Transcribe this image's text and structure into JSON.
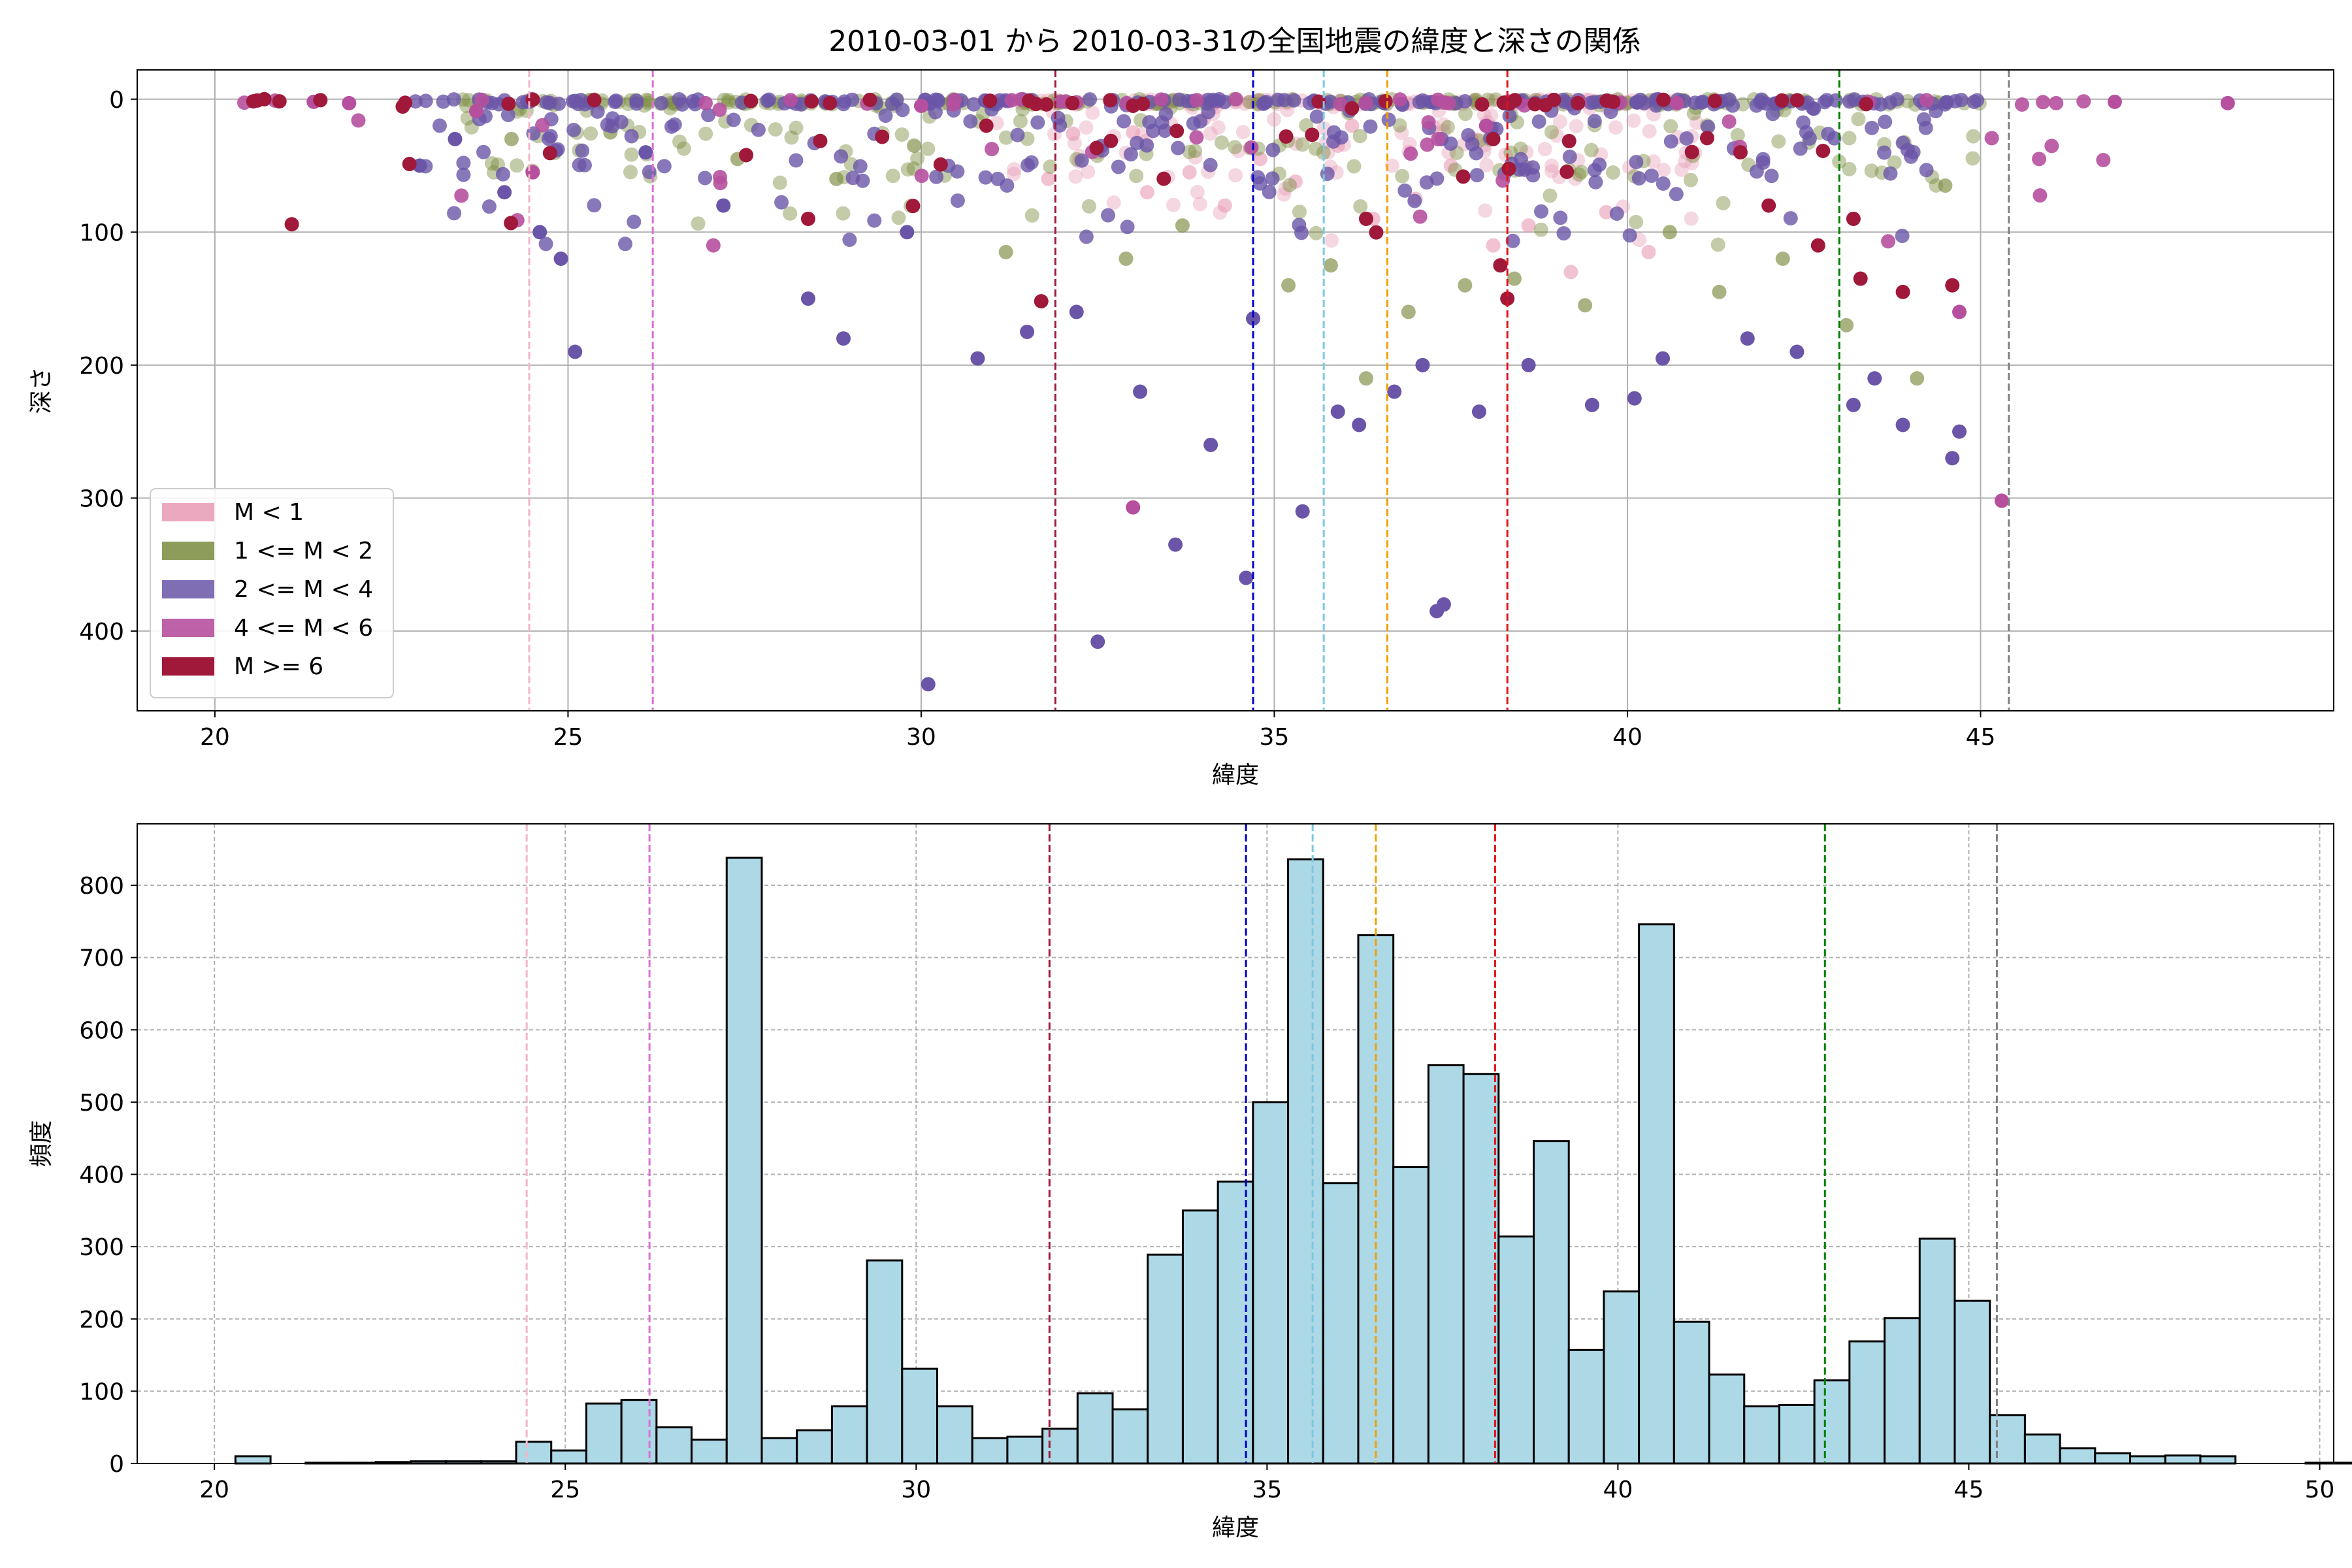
{
  "chart_data": [
    {
      "type": "scatter",
      "title": "2010-03-01 から 2010-03-31の全国地震の緯度と深さの関係",
      "xlabel": "緯度",
      "ylabel": "深さ",
      "xlim": [
        18.9,
        50.0
      ],
      "ylim": [
        460,
        -22
      ],
      "y_inverted": true,
      "xticks": [
        20,
        25,
        30,
        35,
        40,
        45
      ],
      "yticks": [
        0,
        100,
        200,
        300,
        400
      ],
      "grid": true,
      "legend_position": "lower-left",
      "series": [
        {
          "name": "M < 1",
          "color": "#e79ab4",
          "alpha": 0.4,
          "band": [
            31,
            41
          ],
          "points": [
            [
              31.8,
              60
            ],
            [
              32.5,
              40
            ],
            [
              33.2,
              70
            ],
            [
              33.8,
              55
            ],
            [
              34.3,
              80
            ],
            [
              34.8,
              45
            ],
            [
              35.3,
              62
            ],
            [
              35.9,
              35
            ],
            [
              36.4,
              90
            ],
            [
              37.0,
              75
            ],
            [
              37.5,
              50
            ],
            [
              38.1,
              110
            ],
            [
              38.6,
              95
            ],
            [
              39.2,
              130
            ],
            [
              39.7,
              85
            ],
            [
              40.3,
              115
            ],
            [
              36.1,
              20
            ],
            [
              34.0,
              15
            ],
            [
              33.0,
              25
            ],
            [
              37.8,
              30
            ]
          ]
        },
        {
          "name": "1 <= M < 2",
          "color": "#7a8b3e",
          "alpha": 0.45,
          "band": [
            23.5,
            45
          ],
          "points": [
            [
              24.2,
              30
            ],
            [
              25.6,
              25
            ],
            [
              27.4,
              45
            ],
            [
              28.8,
              60
            ],
            [
              29.9,
              35
            ],
            [
              31.2,
              115
            ],
            [
              32.9,
              120
            ],
            [
              33.7,
              95
            ],
            [
              35.2,
              140
            ],
            [
              35.8,
              125
            ],
            [
              36.3,
              210
            ],
            [
              36.9,
              160
            ],
            [
              37.7,
              140
            ],
            [
              38.4,
              135
            ],
            [
              39.4,
              155
            ],
            [
              40.6,
              100
            ],
            [
              41.3,
              145
            ],
            [
              42.2,
              120
            ],
            [
              43.1,
              170
            ],
            [
              44.1,
              210
            ],
            [
              44.5,
              65
            ]
          ]
        },
        {
          "name": "2 <= M < 4",
          "color": "#6a55a8",
          "alpha": 0.8,
          "band": [
            22.8,
            45
          ],
          "points": [
            [
              22.9,
              50
            ],
            [
              23.4,
              30
            ],
            [
              24.1,
              70
            ],
            [
              24.6,
              100
            ],
            [
              24.9,
              120
            ],
            [
              25.1,
              190
            ],
            [
              26.1,
              40
            ],
            [
              27.2,
              80
            ],
            [
              28.4,
              150
            ],
            [
              28.9,
              180
            ],
            [
              29.8,
              100
            ],
            [
              30.1,
              440
            ],
            [
              30.8,
              195
            ],
            [
              31.5,
              175
            ],
            [
              32.2,
              160
            ],
            [
              32.5,
              408
            ],
            [
              33.1,
              220
            ],
            [
              33.6,
              335
            ],
            [
              34.1,
              260
            ],
            [
              34.6,
              360
            ],
            [
              34.7,
              165
            ],
            [
              35.4,
              310
            ],
            [
              35.9,
              235
            ],
            [
              36.2,
              245
            ],
            [
              36.7,
              220
            ],
            [
              37.1,
              200
            ],
            [
              37.3,
              385
            ],
            [
              37.4,
              380
            ],
            [
              37.9,
              235
            ],
            [
              38.6,
              200
            ],
            [
              39.5,
              230
            ],
            [
              40.1,
              225
            ],
            [
              40.5,
              195
            ],
            [
              41.7,
              180
            ],
            [
              42.4,
              190
            ],
            [
              43.5,
              210
            ],
            [
              43.9,
              245
            ],
            [
              44.6,
              270
            ],
            [
              44.7,
              250
            ],
            [
              43.2,
              230
            ]
          ]
        },
        {
          "name": "4 <= M < 6",
          "color": "#b6509e",
          "alpha": 0.9,
          "band": [
            20.3,
            47
          ],
          "points": [
            [
              21.4,
              2
            ],
            [
              21.9,
              3
            ],
            [
              23.7,
              9
            ],
            [
              24.5,
              55
            ],
            [
              30.0,
              5
            ],
            [
              33.0,
              307
            ],
            [
              38.0,
              20
            ],
            [
              40.7,
              3
            ],
            [
              44.7,
              160
            ],
            [
              45.3,
              302
            ],
            [
              48.5,
              3
            ],
            [
              46.9,
              2
            ]
          ]
        },
        {
          "name": "M >= 6",
          "color": "#a0193a",
          "alpha": 1.0,
          "band": [
            20.5,
            44
          ],
          "points": [
            [
              20.6,
              1
            ],
            [
              20.7,
              0
            ],
            [
              28.4,
              90
            ],
            [
              31.7,
              152
            ],
            [
              33.0,
              5
            ],
            [
              36.3,
              90
            ],
            [
              38.1,
              30
            ],
            [
              38.3,
              150
            ],
            [
              38.2,
              125
            ],
            [
              39.8,
              2
            ],
            [
              42.0,
              80
            ],
            [
              42.7,
              110
            ],
            [
              43.2,
              90
            ],
            [
              43.3,
              135
            ],
            [
              43.9,
              145
            ],
            [
              44.6,
              140
            ],
            [
              41.6,
              40
            ]
          ]
        }
      ],
      "vlines": [
        {
          "x": 24.45,
          "color": "#f4b6c8"
        },
        {
          "x": 26.2,
          "color": "#da70d6"
        },
        {
          "x": 31.9,
          "color": "#a0193a"
        },
        {
          "x": 34.7,
          "color": "#0000cd"
        },
        {
          "x": 35.7,
          "color": "#7ec8e3"
        },
        {
          "x": 36.6,
          "color": "#f2a100"
        },
        {
          "x": 38.3,
          "color": "#e0131a"
        },
        {
          "x": 43.0,
          "color": "#008000"
        },
        {
          "x": 45.4,
          "color": "#808080"
        }
      ]
    },
    {
      "type": "bar",
      "xlabel": "緯度",
      "ylabel": "頻度",
      "xlim": [
        18.9,
        50.2
      ],
      "ylim": [
        0,
        885
      ],
      "xticks": [
        20,
        25,
        30,
        35,
        40,
        45,
        50
      ],
      "yticks": [
        0,
        100,
        200,
        300,
        400,
        500,
        600,
        700,
        800
      ],
      "grid": true,
      "bar_color": "#add8e6",
      "bar_edge": "#000000",
      "bin_start": 20.3,
      "bin_width": 0.5,
      "values": [
        10,
        0,
        1,
        1,
        2,
        3,
        3,
        3,
        30,
        18,
        83,
        88,
        50,
        33,
        838,
        35,
        46,
        79,
        281,
        131,
        79,
        35,
        37,
        48,
        97,
        75,
        289,
        350,
        390,
        500,
        836,
        388,
        731,
        410,
        551,
        539,
        314,
        446,
        157,
        238,
        746,
        196,
        123,
        79,
        81,
        115,
        169,
        201,
        311,
        225,
        67,
        40,
        21,
        14,
        10,
        11,
        10,
        0,
        0,
        1,
        1,
        0,
        1
      ],
      "vlines": [
        {
          "x": 24.45,
          "color": "#f4b6c8"
        },
        {
          "x": 26.2,
          "color": "#da70d6"
        },
        {
          "x": 31.9,
          "color": "#a0193a"
        },
        {
          "x": 34.7,
          "color": "#0000cd"
        },
        {
          "x": 35.65,
          "color": "#7ec8e3"
        },
        {
          "x": 36.55,
          "color": "#f2a100"
        },
        {
          "x": 38.25,
          "color": "#e0131a"
        },
        {
          "x": 42.95,
          "color": "#008000"
        },
        {
          "x": 45.4,
          "color": "#808080"
        }
      ]
    }
  ]
}
